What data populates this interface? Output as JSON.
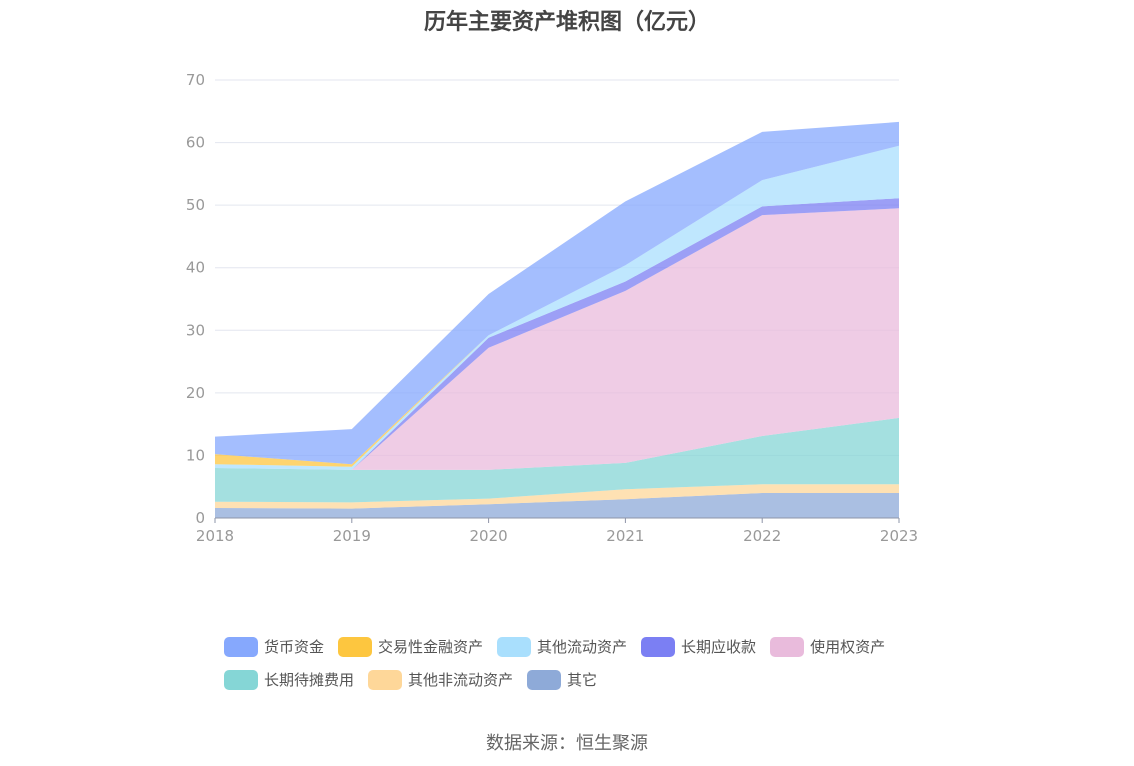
{
  "chart_data": {
    "type": "area",
    "stacked": true,
    "title": "历年主要资产堆积图（亿元）",
    "categories": [
      "2018",
      "2019",
      "2020",
      "2021",
      "2022",
      "2023"
    ],
    "ylim": [
      0,
      70
    ],
    "yticks": [
      "0",
      "10",
      "20",
      "30",
      "40",
      "50",
      "60",
      "70"
    ],
    "grid": true,
    "legend_position": "bottom",
    "series": [
      {
        "name": "其它",
        "color": "#8eaad8",
        "values": [
          1.6,
          1.5,
          2.2,
          3.0,
          4.0,
          4.0
        ]
      },
      {
        "name": "其他非流动资产",
        "color": "#fed799",
        "values": [
          1.0,
          1.0,
          0.9,
          1.6,
          1.4,
          1.4
        ]
      },
      {
        "name": "长期待摊费用",
        "color": "#85d6d6",
        "values": [
          5.4,
          5.2,
          4.6,
          4.2,
          7.7,
          10.6
        ]
      },
      {
        "name": "使用权资产",
        "color": "#e9bbdc",
        "values": [
          0.0,
          0.0,
          19.5,
          27.5,
          35.3,
          33.5
        ]
      },
      {
        "name": "长期应收款",
        "color": "#7b7ff3",
        "values": [
          0.0,
          0.0,
          1.6,
          1.5,
          1.4,
          1.6
        ]
      },
      {
        "name": "其他流动资产",
        "color": "#a9dffd",
        "values": [
          0.6,
          0.5,
          0.4,
          2.6,
          4.2,
          8.4
        ]
      },
      {
        "name": "交易性金融资产",
        "color": "#fdc63f",
        "values": [
          1.6,
          0.4,
          0.0,
          0.0,
          0.0,
          0.0
        ]
      },
      {
        "name": "货币资金",
        "color": "#86a8fd",
        "values": [
          2.8,
          5.6,
          6.6,
          10.2,
          7.7,
          3.8
        ]
      }
    ],
    "legend_order": [
      "货币资金",
      "交易性金融资产",
      "其他流动资产",
      "长期应收款",
      "使用权资产",
      "长期待摊费用",
      "其他非流动资产",
      "其它"
    ]
  },
  "source": "数据来源：恒生聚源"
}
